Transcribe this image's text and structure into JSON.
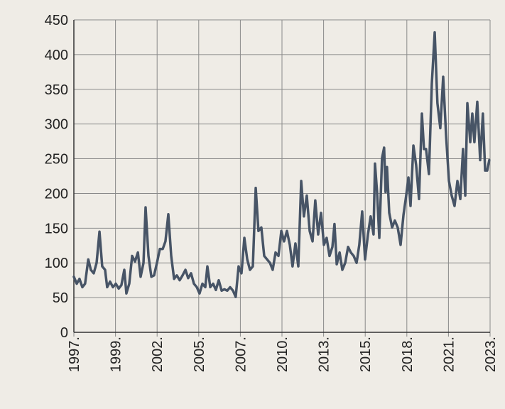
{
  "chart_data": {
    "type": "line",
    "color": "#475466",
    "grid": true,
    "xlim": [
      1997,
      2023
    ],
    "xticks": [
      {
        "value": 1997,
        "label": "1997."
      },
      {
        "value": 1999.6,
        "label": "1999."
      },
      {
        "value": 2002.2,
        "label": "2002."
      },
      {
        "value": 2004.8,
        "label": "2005."
      },
      {
        "value": 2007.4,
        "label": "2007."
      },
      {
        "value": 2010,
        "label": "2010."
      },
      {
        "value": 2012.6,
        "label": "2013."
      },
      {
        "value": 2015.2,
        "label": "2015."
      },
      {
        "value": 2017.8,
        "label": "2018."
      },
      {
        "value": 2020.4,
        "label": "2021."
      },
      {
        "value": 2023,
        "label": "2023."
      }
    ],
    "ylim": [
      0,
      450
    ],
    "yticks": [
      0,
      50,
      100,
      150,
      200,
      250,
      300,
      350,
      400,
      450
    ],
    "x": [
      1997.0,
      1997.18,
      1997.35,
      1997.53,
      1997.7,
      1997.9,
      1998.06,
      1998.24,
      1998.42,
      1998.6,
      1998.77,
      1998.95,
      1999.08,
      1999.26,
      1999.44,
      1999.62,
      1999.8,
      1999.97,
      2000.15,
      2000.28,
      2000.46,
      2000.64,
      2000.82,
      2001.0,
      2001.17,
      2001.35,
      2001.48,
      2001.66,
      2001.84,
      2002.01,
      2002.19,
      2002.37,
      2002.55,
      2002.72,
      2002.9,
      2003.08,
      2003.26,
      2003.43,
      2003.61,
      2003.79,
      2003.97,
      2004.14,
      2004.32,
      2004.5,
      2004.68,
      2004.85,
      2005.03,
      2005.21,
      2005.34,
      2005.52,
      2005.7,
      2005.87,
      2006.05,
      2006.23,
      2006.4,
      2006.58,
      2006.76,
      2006.94,
      2007.11,
      2007.29,
      2007.47,
      2007.65,
      2007.83,
      2008.0,
      2008.18,
      2008.36,
      2008.53,
      2008.71,
      2008.89,
      2009.07,
      2009.25,
      2009.42,
      2009.6,
      2009.78,
      2009.96,
      2010.13,
      2010.31,
      2010.49,
      2010.66,
      2010.84,
      2011.02,
      2011.2,
      2011.37,
      2011.55,
      2011.73,
      2011.91,
      2012.08,
      2012.26,
      2012.44,
      2012.62,
      2012.79,
      2012.97,
      2013.15,
      2013.28,
      2013.42,
      2013.6,
      2013.77,
      2013.95,
      2014.13,
      2014.3,
      2014.48,
      2014.66,
      2014.83,
      2015.01,
      2015.19,
      2015.37,
      2015.54,
      2015.72,
      2015.81,
      2015.94,
      2016.08,
      2016.25,
      2016.38,
      2016.47,
      2016.56,
      2016.7,
      2016.88,
      2017.05,
      2017.23,
      2017.41,
      2017.59,
      2017.76,
      2017.9,
      2018.03,
      2018.21,
      2018.38,
      2018.56,
      2018.74,
      2018.87,
      2019.0,
      2019.18,
      2019.36,
      2019.54,
      2019.71,
      2019.89,
      2020.07,
      2020.25,
      2020.43,
      2020.6,
      2020.78,
      2020.96,
      2021.14,
      2021.31,
      2021.45,
      2021.58,
      2021.76,
      2021.89,
      2022.02,
      2022.2,
      2022.38,
      2022.55,
      2022.69,
      2022.82,
      2022.95
    ],
    "values": [
      80,
      70,
      77,
      65,
      70,
      105,
      90,
      85,
      100,
      145,
      95,
      90,
      65,
      73,
      65,
      70,
      63,
      68,
      90,
      56,
      70,
      110,
      102,
      115,
      80,
      100,
      180,
      110,
      80,
      82,
      100,
      120,
      120,
      131,
      170,
      110,
      77,
      82,
      75,
      82,
      90,
      78,
      85,
      70,
      65,
      56,
      70,
      65,
      95,
      65,
      70,
      61,
      75,
      60,
      62,
      60,
      65,
      60,
      51,
      95,
      85,
      136,
      105,
      90,
      95,
      208,
      146,
      151,
      110,
      105,
      100,
      90,
      115,
      110,
      146,
      131,
      146,
      126,
      95,
      128,
      95,
      218,
      167,
      197,
      146,
      131,
      190,
      141,
      172,
      126,
      136,
      110,
      123,
      156,
      98,
      115,
      90,
      100,
      123,
      115,
      110,
      100,
      126,
      174,
      105,
      141,
      167,
      141,
      243,
      202,
      136,
      251,
      266,
      202,
      238,
      172,
      151,
      161,
      151,
      126,
      169,
      197,
      223,
      182,
      269,
      241,
      192,
      315,
      264,
      264,
      228,
      358,
      432,
      330,
      294,
      368,
      284,
      218,
      197,
      182,
      218,
      192,
      264,
      197,
      330,
      274,
      315,
      274,
      332,
      248,
      315,
      233,
      233,
      248
    ]
  }
}
